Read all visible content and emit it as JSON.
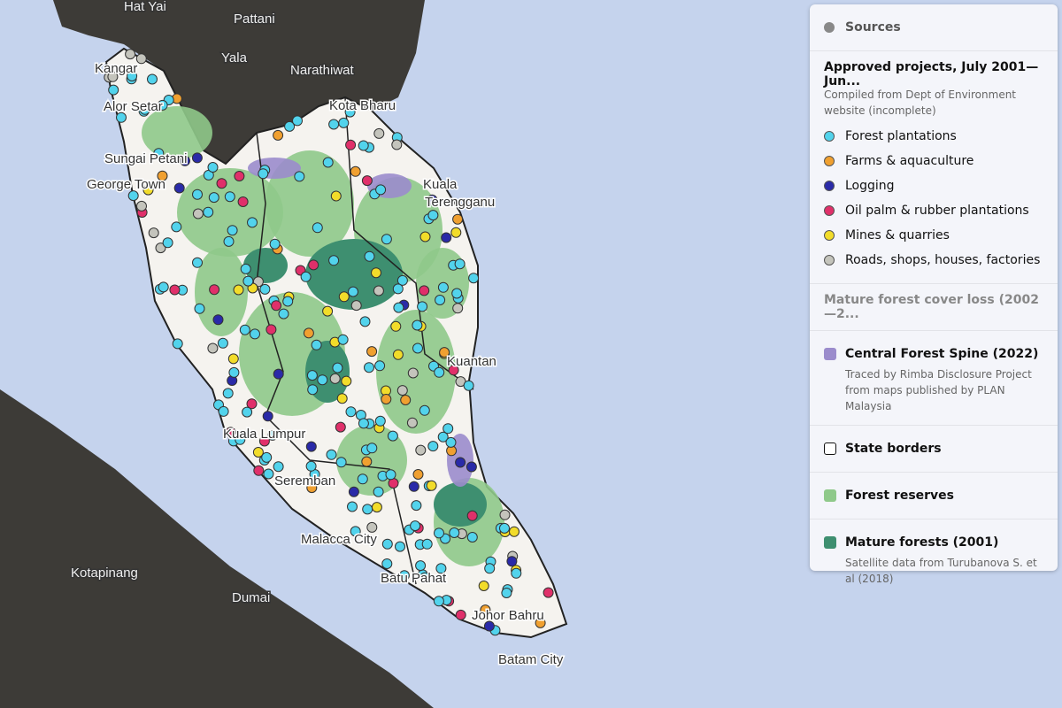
{
  "map": {
    "labels": [
      "Hat Yai",
      "Pattani",
      "Yala",
      "Narathiwat",
      "Kangar",
      "Alor Setar",
      "Kota Bharu",
      "Sungai Petani",
      "George Town",
      "Kuala",
      "Terengganu",
      "Kuantan",
      "Kuala Lumpur",
      "Seremban",
      "Malacca City",
      "Batu Pahat",
      "Johor Bahru",
      "Batam City",
      "Dumai",
      "Kotapinang"
    ]
  },
  "legend": {
    "sources": "Sources",
    "projects": {
      "title": "Approved projects, July 2001—Jun...",
      "note": "Compiled from Dept of Environment website (incomplete)",
      "items": [
        {
          "label": "Forest plantations",
          "color": "#52d3ec"
        },
        {
          "label": "Farms & aquaculture",
          "color": "#f0a030"
        },
        {
          "label": "Logging",
          "color": "#2a2aa8"
        },
        {
          "label": "Oil palm & rubber plantations",
          "color": "#e0306a"
        },
        {
          "label": "Mines & quarries",
          "color": "#f2dc2a"
        },
        {
          "label": "Roads, shops, houses, factories",
          "color": "#c4c4bc"
        }
      ]
    },
    "loss": "Mature forest cover loss (2002—2...",
    "spine": {
      "label": "Central Forest Spine (2022)",
      "color": "#9b8ccc",
      "note": "Traced by Rimba Disclosure Project from maps published by PLAN Malaysia"
    },
    "borders": "State borders",
    "reserves": {
      "label": "Forest reserves",
      "color": "#8fc98a"
    },
    "mature": {
      "label": "Mature forests (2001)",
      "color": "#3e8f70",
      "note": "Satellite data from Turubanova S. et al (2018)"
    }
  }
}
